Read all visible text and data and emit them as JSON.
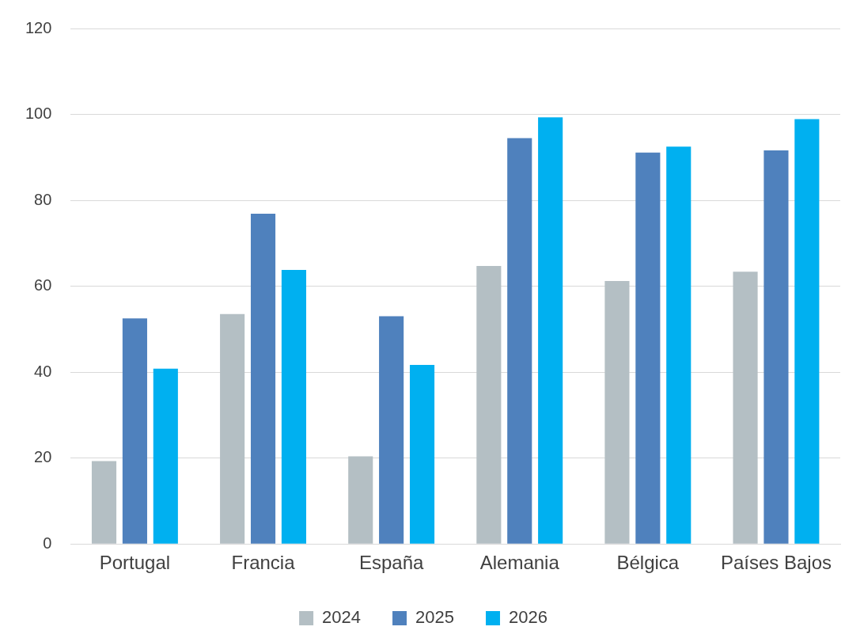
{
  "chart_data": {
    "type": "bar",
    "categories": [
      "Portugal",
      "Francia",
      "España",
      "Alemania",
      "Bélgica",
      "Países Bajos"
    ],
    "series": [
      {
        "name": "2024",
        "color": "#b4bfc4",
        "values": [
          19.3,
          53.5,
          20.4,
          64.7,
          61.2,
          63.4
        ]
      },
      {
        "name": "2025",
        "color": "#4f81bd",
        "values": [
          52.5,
          76.9,
          53.0,
          94.5,
          91.1,
          91.6
        ]
      },
      {
        "name": "2026",
        "color": "#00b0f0",
        "values": [
          40.8,
          63.8,
          41.7,
          99.3,
          92.5,
          98.9
        ]
      }
    ],
    "ylim": [
      0,
      120
    ],
    "yticks": [
      0,
      20,
      40,
      60,
      80,
      100,
      120
    ],
    "grid": "y",
    "legend": "bottom"
  }
}
